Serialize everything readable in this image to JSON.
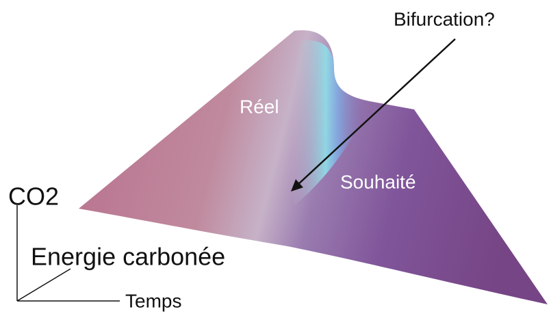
{
  "annotation": "Bifurcation?",
  "regions": {
    "actual": "Réel",
    "desired": "Souhaité"
  },
  "axes": {
    "vertical": "CO2",
    "depth": "Energie carbonée",
    "horizontal": "Temps"
  }
}
